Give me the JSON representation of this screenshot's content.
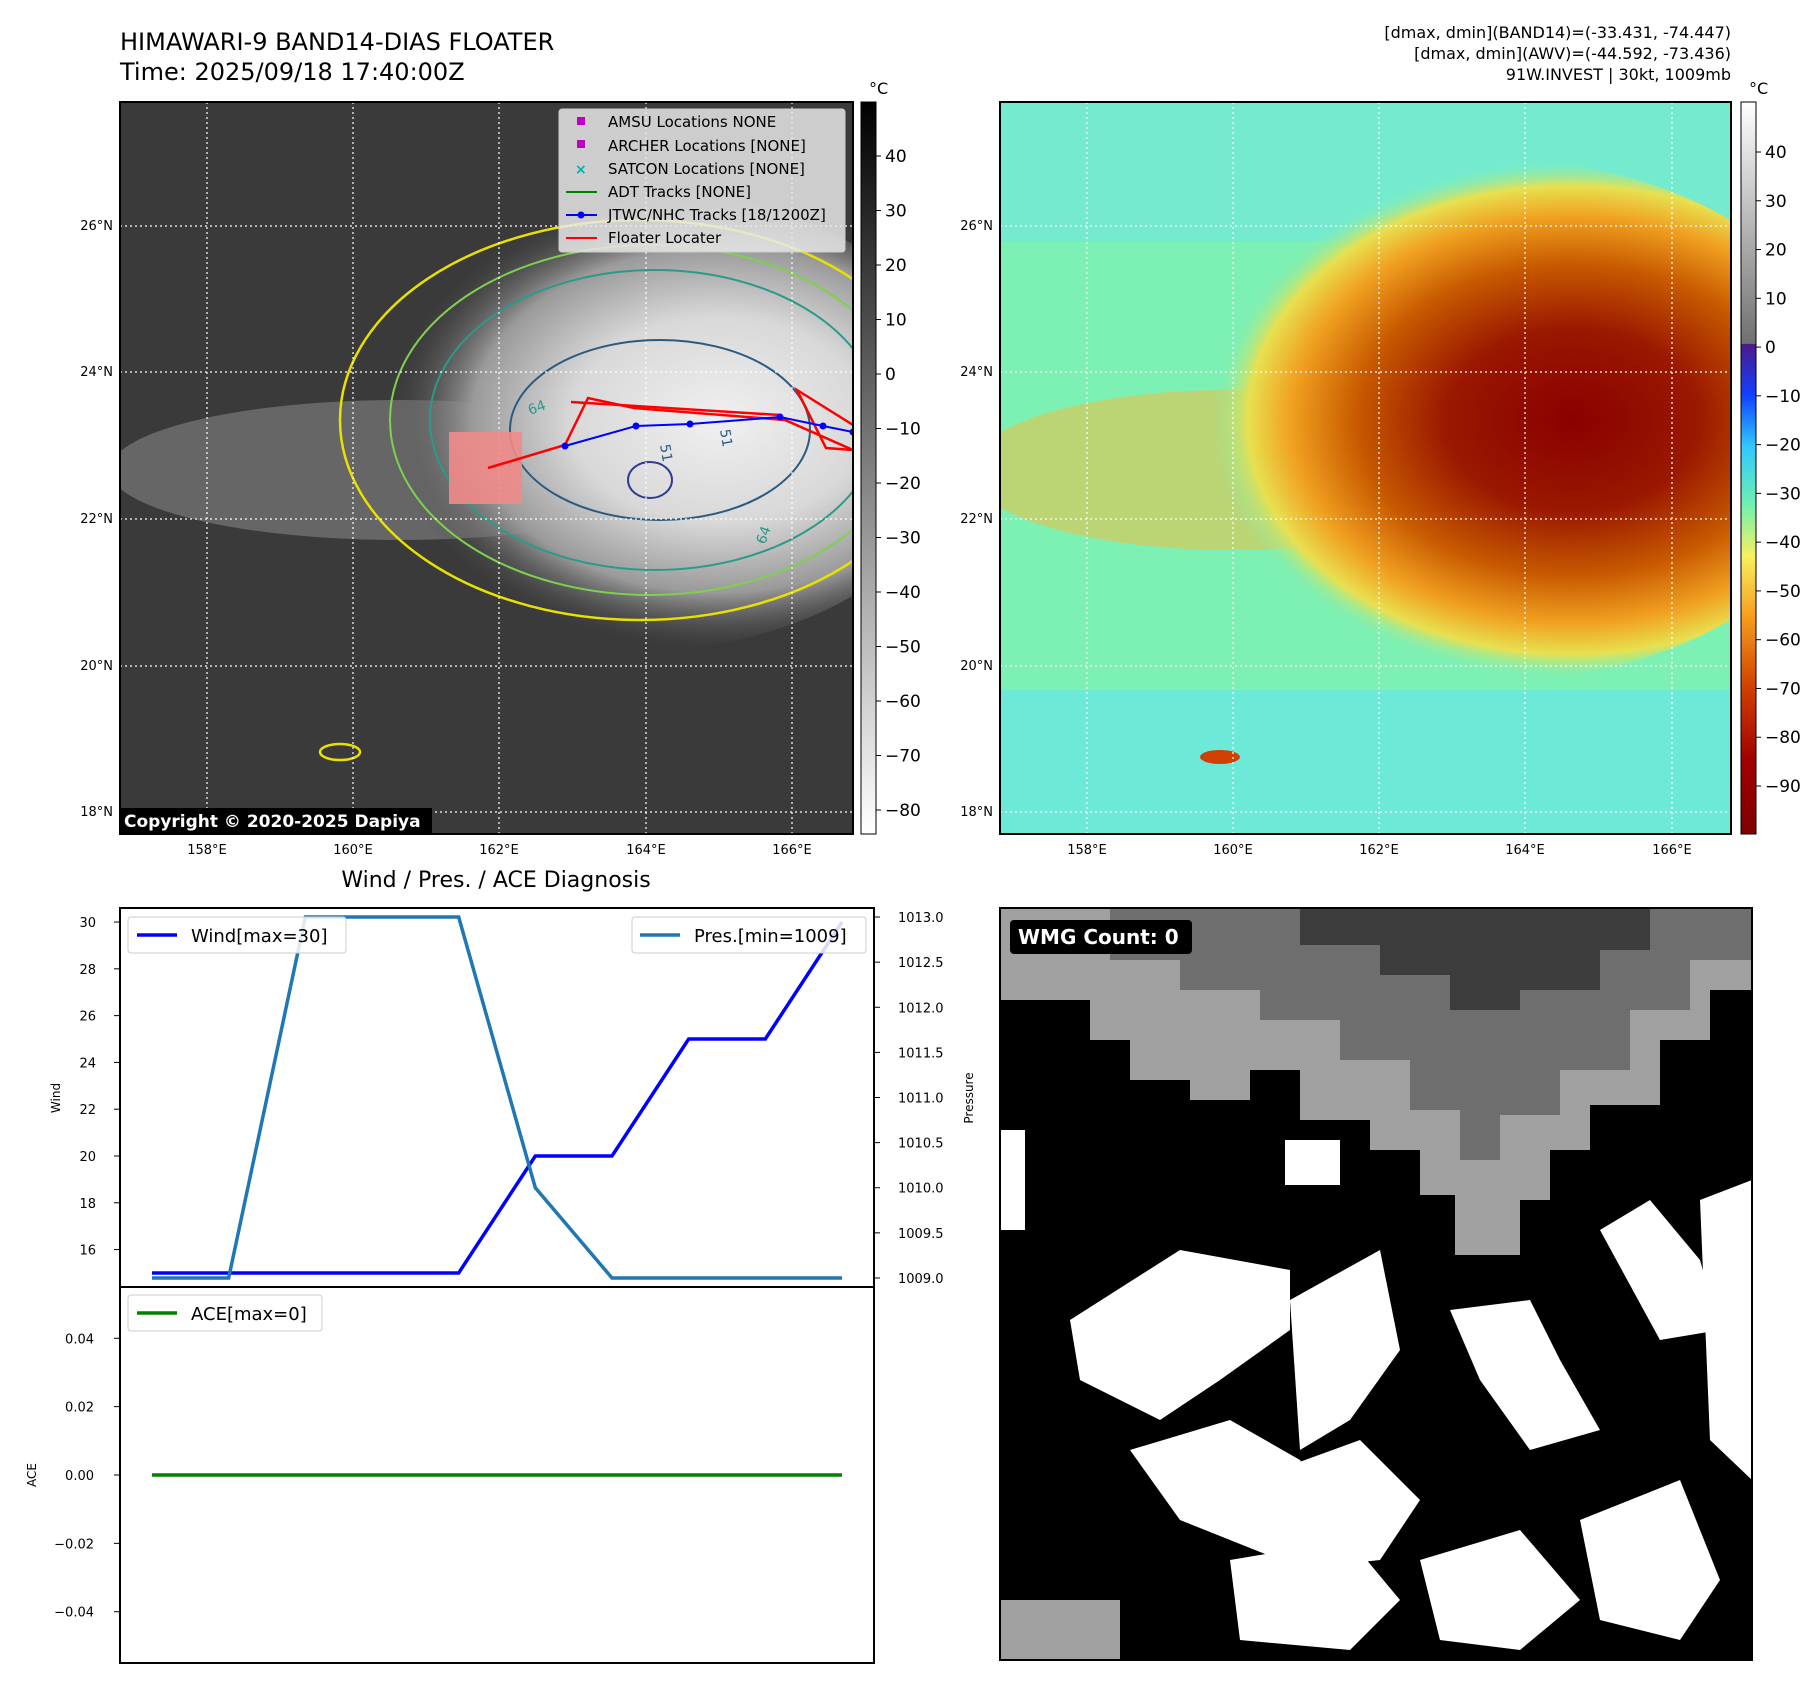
{
  "header": {
    "title_line1": "HIMAWARI-9 BAND14-DIAS FLOATER",
    "title_line2": "Time: 2025/09/18 17:40:00Z",
    "stats_line1": "[dmax, dmin](BAND14)=(-33.431, -74.447)",
    "stats_line2": "[dmax, dmin](AWV)=(-44.592, -73.436)",
    "stats_line3": "91W.INVEST | 30kt, 1009mb"
  },
  "copyright": "Copyright © 2020-2025 Dapiya",
  "map_axes": {
    "lon_ticks": [
      "158°E",
      "160°E",
      "162°E",
      "164°E",
      "166°E"
    ],
    "lat_ticks": [
      "26°N",
      "24°N",
      "22°N",
      "20°N",
      "18°N"
    ],
    "contour_labels": [
      "64",
      "64",
      "51",
      "51"
    ]
  },
  "ir_legend": [
    {
      "label": "AMSU Locations NONE",
      "marker": "square",
      "color": "#c000c0"
    },
    {
      "label": "ARCHER Locations [NONE]",
      "marker": "square",
      "color": "#c000c0"
    },
    {
      "label": "SATCON Locations [NONE]",
      "marker": "x",
      "color": "#00b0b0"
    },
    {
      "label": "ADT Tracks [NONE]",
      "marker": "line",
      "color": "#008000"
    },
    {
      "label": "JTWC/NHC Tracks [18/1200Z]",
      "marker": "line-dot",
      "color": "#0000ff"
    },
    {
      "label": "Floater Locater",
      "marker": "line",
      "color": "#ff0000"
    }
  ],
  "colorbar_gray": {
    "unit": "°C",
    "ticks": [
      "40",
      "30",
      "20",
      "10",
      "0",
      "−10",
      "−20",
      "−30",
      "−40",
      "−50",
      "−60",
      "−70",
      "−80"
    ]
  },
  "colorbar_color": {
    "unit": "°C",
    "ticks": [
      "40",
      "30",
      "20",
      "10",
      "0",
      "−10",
      "−20",
      "−30",
      "−40",
      "−50",
      "−60",
      "−70",
      "−80",
      "−90"
    ]
  },
  "wmg": {
    "label": "WMG Count: 0"
  },
  "chart_data": [
    {
      "type": "line",
      "title": "Wind / Pres. / ACE Diagnosis",
      "x": [
        0,
        1,
        2,
        3,
        4,
        5,
        6,
        7,
        8,
        9
      ],
      "series": [
        {
          "name": "Wind[max=30]",
          "axis": "left",
          "color": "#0000ff",
          "values": [
            15,
            15,
            15,
            15,
            15,
            20,
            20,
            25,
            25,
            30
          ]
        },
        {
          "name": "Pres.[min=1009]",
          "axis": "right",
          "color": "#1f77b4",
          "values": [
            1009,
            1009,
            1013,
            1013,
            1013,
            1010,
            1009,
            1009,
            1009,
            1009
          ]
        }
      ],
      "ylabel": "Wind",
      "ylabel_right": "Pressure",
      "ylim": [
        14.4,
        30.6
      ],
      "ylim_right": [
        1008.9,
        1013.1
      ],
      "yticks": [
        16,
        18,
        20,
        22,
        24,
        26,
        28,
        30
      ],
      "yticks_right": [
        "1009.0",
        "1009.5",
        "1010.0",
        "1010.5",
        "1011.0",
        "1011.5",
        "1012.0",
        "1012.5",
        "1013.0"
      ],
      "legend": [
        "upper-left",
        "upper-right"
      ]
    },
    {
      "type": "line",
      "x": [
        0,
        1,
        2,
        3,
        4,
        5,
        6,
        7,
        8,
        9
      ],
      "series": [
        {
          "name": "ACE[max=0]",
          "color": "#008000",
          "values": [
            0,
            0,
            0,
            0,
            0,
            0,
            0,
            0,
            0,
            0
          ]
        }
      ],
      "ylabel": "ACE",
      "ylim": [
        -0.055,
        0.055
      ],
      "yticks": [
        "0.04",
        "0.02",
        "0.00",
        "−0.02",
        "−0.04"
      ],
      "legend": "upper-left"
    }
  ]
}
